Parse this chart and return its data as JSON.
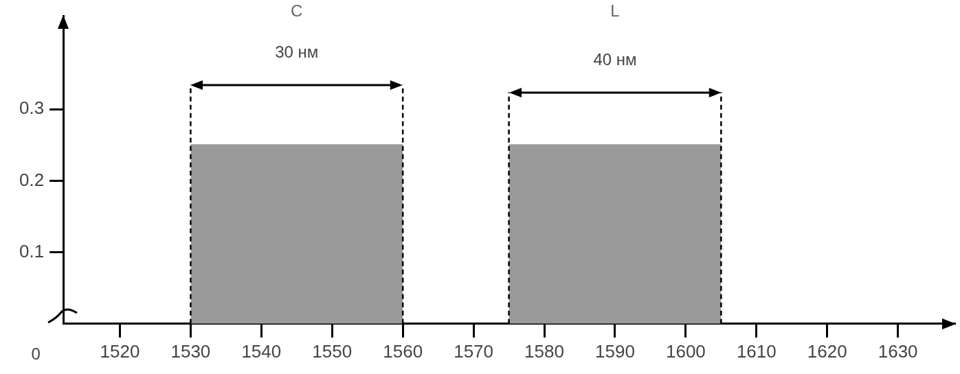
{
  "chart_data": {
    "type": "area",
    "series": [
      {
        "color": "#9a9a9a",
        "x": [
          1530,
          1560
        ],
        "values": [
          0.25,
          0.25
        ]
      },
      {
        "color": "#9a9a9a",
        "x": [
          1575,
          1605
        ],
        "values": [
          0.25,
          0.25
        ]
      }
    ],
    "xlim": [
      1512,
      1638
    ],
    "xticks": [
      1520,
      1530,
      1540,
      1550,
      1560,
      1570,
      1580,
      1590,
      1600,
      1610,
      1620,
      1630
    ],
    "ylim": [
      0,
      0.43
    ],
    "yticks": [
      0.1,
      0.2,
      0.3
    ],
    "ref_lines": [
      {
        "axis": "x",
        "value": 1530,
        "line_style": "dashed"
      },
      {
        "axis": "x",
        "value": 1560,
        "line_style": "dashed"
      },
      {
        "axis": "x",
        "value": 1575,
        "line_style": "dashed"
      },
      {
        "axis": "x",
        "value": 1605,
        "line_style": "dashed"
      }
    ],
    "annotations": [
      "C",
      "L",
      "30 нм",
      "40 нм",
      "0"
    ],
    "legend": false
  }
}
